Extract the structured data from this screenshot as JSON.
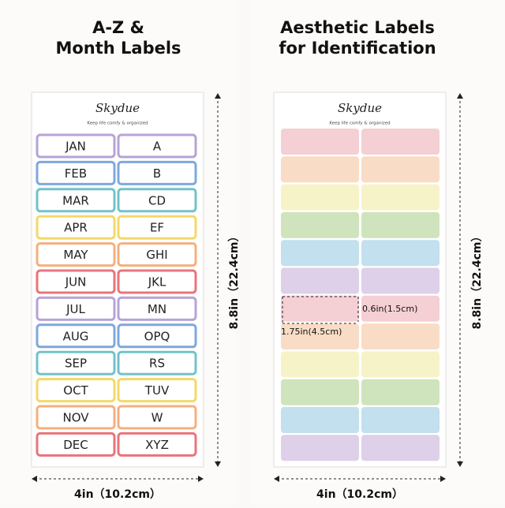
{
  "left_panel": {
    "title_lines": [
      "A-Z &",
      "Month Labels"
    ],
    "brand": "Skydue",
    "tagline": "Keep life comfy & organized",
    "rows": [
      [
        "JAN",
        "A"
      ],
      [
        "FEB",
        "B"
      ],
      [
        "MAR",
        "CD"
      ],
      [
        "APR",
        "EF"
      ],
      [
        "MAY",
        "GHI"
      ],
      [
        "JUN",
        "JKL"
      ],
      [
        "JUL",
        "MN"
      ],
      [
        "AUG",
        "OPQ"
      ],
      [
        "SEP",
        "RS"
      ],
      [
        "OCT",
        "TUV"
      ],
      [
        "NOV",
        "W"
      ],
      [
        "DEC",
        "XYZ"
      ]
    ],
    "height_label": "8.8in（22.4cm）",
    "width_label": "4in（10.2cm）"
  },
  "right_panel": {
    "title_lines": [
      "Aesthetic Labels",
      "for Identification"
    ],
    "brand": "Skydue",
    "tagline": "Keep life comfy & organized",
    "label_height": "0.6in(1.5cm)",
    "label_width": "1.75in(4.5cm)",
    "height_label": "8.8in（22.4cm）",
    "width_label": "4in（10.2cm）"
  }
}
